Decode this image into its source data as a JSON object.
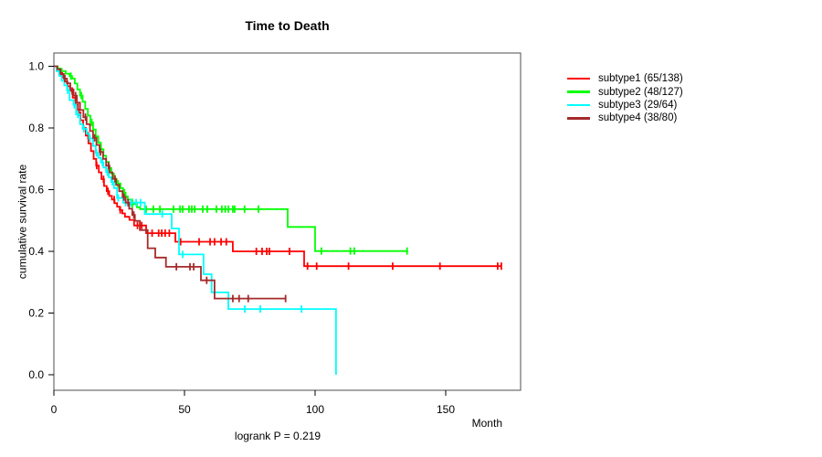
{
  "title": "Time to Death",
  "footer": {
    "annotation": "logrank P = 0.219"
  },
  "axes": {
    "x_label": "Month",
    "y_label": "cumulative survival rate"
  },
  "chart_data": {
    "type": "line",
    "style": "kaplan-meier-step",
    "title": "Time to Death",
    "xlabel": "Month",
    "ylabel": "cumulative survival rate",
    "annotation": "logrank P = 0.219",
    "xlim": [
      0,
      178
    ],
    "ylim": [
      0,
      1.0
    ],
    "xticks": [
      0,
      50,
      100,
      150
    ],
    "ytick_labels": [
      "0.0",
      "0.2",
      "0.4",
      "0.6",
      "0.8",
      "1.0"
    ],
    "grid": false,
    "legend_position": "right-outside",
    "series": [
      {
        "name": "subtype1",
        "label": "subtype1 (65/138)",
        "events": 65,
        "n": 138,
        "color": "#ff0000",
        "points": [
          [
            0,
            1
          ],
          [
            1.2,
            0.993
          ],
          [
            2.2,
            0.978
          ],
          [
            3.2,
            0.964
          ],
          [
            4.2,
            0.95
          ],
          [
            5.2,
            0.935
          ],
          [
            6.2,
            0.92
          ],
          [
            7.2,
            0.898
          ],
          [
            8.2,
            0.876
          ],
          [
            9.2,
            0.85
          ],
          [
            10.2,
            0.825
          ],
          [
            11.2,
            0.8
          ],
          [
            12.2,
            0.775
          ],
          [
            13.2,
            0.75
          ],
          [
            14.2,
            0.725
          ],
          [
            15.2,
            0.7
          ],
          [
            16.2,
            0.678
          ],
          [
            17.2,
            0.656
          ],
          [
            18.2,
            0.634
          ],
          [
            19.2,
            0.612
          ],
          [
            20.2,
            0.595
          ],
          [
            21.2,
            0.58
          ],
          [
            22.2,
            0.568
          ],
          [
            23.2,
            0.556
          ],
          [
            24.2,
            0.545
          ],
          [
            25.2,
            0.534
          ],
          [
            26.2,
            0.523
          ],
          [
            27.2,
            0.512
          ],
          [
            28.9,
            0.502
          ],
          [
            30.7,
            0.484
          ],
          [
            35.3,
            0.459
          ],
          [
            46.5,
            0.431
          ],
          [
            68.5,
            0.4
          ],
          [
            95.8,
            0.352
          ]
        ],
        "end_t": 171.5,
        "censors": [
          2.8,
          7,
          9.6,
          13.1,
          16.4,
          19,
          20.7,
          23.1,
          25.4,
          32,
          33.6,
          37.6,
          40.1,
          41.3,
          42.6,
          44.2,
          48.5,
          55.6,
          59.8,
          61.5,
          64,
          66,
          77.5,
          79.7,
          81.5,
          82.5,
          90.2,
          97.1,
          100.6,
          112.8,
          129.7,
          147.8,
          169.9,
          171.3
        ]
      },
      {
        "name": "subtype2",
        "label": "subtype2 (48/127)",
        "events": 48,
        "n": 127,
        "color": "#00ff00",
        "points": [
          [
            0,
            1
          ],
          [
            1.5,
            0.992
          ],
          [
            3,
            0.984
          ],
          [
            4.5,
            0.976
          ],
          [
            6,
            0.968
          ],
          [
            7,
            0.96
          ],
          [
            8,
            0.944
          ],
          [
            9,
            0.925
          ],
          [
            10,
            0.905
          ],
          [
            11,
            0.885
          ],
          [
            12,
            0.862
          ],
          [
            13,
            0.84
          ],
          [
            14,
            0.818
          ],
          [
            15,
            0.795
          ],
          [
            16,
            0.773
          ],
          [
            17,
            0.752
          ],
          [
            18,
            0.731
          ],
          [
            19,
            0.71
          ],
          [
            20,
            0.69
          ],
          [
            21,
            0.67
          ],
          [
            22,
            0.652
          ],
          [
            23,
            0.635
          ],
          [
            24,
            0.62
          ],
          [
            25.5,
            0.605
          ],
          [
            26.5,
            0.59
          ],
          [
            27.5,
            0.578
          ],
          [
            28.3,
            0.568
          ],
          [
            30,
            0.553
          ],
          [
            31.8,
            0.543
          ],
          [
            33,
            0.537
          ],
          [
            89.5,
            0.479
          ],
          [
            100,
            0.401
          ]
        ],
        "end_t": 135.6,
        "censors": [
          6.5,
          10.5,
          14.5,
          18,
          21,
          24.5,
          27,
          30,
          35.3,
          38.1,
          40.6,
          45.8,
          48.3,
          49.3,
          51.7,
          52.8,
          53.9,
          57,
          58.7,
          62.2,
          64.3,
          65.6,
          66.8,
          68.5,
          69.2,
          73,
          78.3,
          102.4,
          113.5,
          115,
          135.2
        ]
      },
      {
        "name": "subtype3",
        "label": "subtype3 (29/64)",
        "events": 29,
        "n": 64,
        "color": "#00ffff",
        "points": [
          [
            0,
            1
          ],
          [
            1,
            0.984
          ],
          [
            2,
            0.969
          ],
          [
            3,
            0.953
          ],
          [
            4,
            0.938
          ],
          [
            5,
            0.922
          ],
          [
            6,
            0.89
          ],
          [
            7.5,
            0.875
          ],
          [
            8.5,
            0.844
          ],
          [
            10,
            0.812
          ],
          [
            11,
            0.797
          ],
          [
            12.5,
            0.781
          ],
          [
            13.5,
            0.766
          ],
          [
            15,
            0.742
          ],
          [
            16,
            0.719
          ],
          [
            17,
            0.703
          ],
          [
            18,
            0.688
          ],
          [
            19,
            0.672
          ],
          [
            20,
            0.656
          ],
          [
            21,
            0.64
          ],
          [
            22,
            0.625
          ],
          [
            23,
            0.605
          ],
          [
            24.2,
            0.573
          ],
          [
            26.5,
            0.558
          ],
          [
            34.8,
            0.521
          ],
          [
            45.1,
            0.474
          ],
          [
            47.9,
            0.39
          ],
          [
            57.3,
            0.326
          ],
          [
            60.4,
            0.267
          ],
          [
            66.8,
            0.213
          ],
          [
            108,
            0
          ]
        ],
        "end_t": 108,
        "censors": [
          5.3,
          7.8,
          9.2,
          11.5,
          13.8,
          16.3,
          18.6,
          20.5,
          22.4,
          24.6,
          27.5,
          29.5,
          31.5,
          33.2,
          41.5,
          49.3,
          73.1,
          79,
          94.8
        ]
      },
      {
        "name": "subtype4",
        "label": "subtype4 (38/80)",
        "events": 38,
        "n": 80,
        "color": "#a52a2a",
        "points": [
          [
            0,
            1
          ],
          [
            1.3,
            0.99
          ],
          [
            2.5,
            0.975
          ],
          [
            3.8,
            0.96
          ],
          [
            5,
            0.945
          ],
          [
            6.3,
            0.925
          ],
          [
            7.5,
            0.905
          ],
          [
            8.8,
            0.882
          ],
          [
            10,
            0.858
          ],
          [
            11.3,
            0.835
          ],
          [
            12.5,
            0.812
          ],
          [
            13.8,
            0.79
          ],
          [
            15,
            0.768
          ],
          [
            16.3,
            0.745
          ],
          [
            17.5,
            0.722
          ],
          [
            18.8,
            0.7
          ],
          [
            20,
            0.678
          ],
          [
            21.3,
            0.656
          ],
          [
            22.5,
            0.635
          ],
          [
            23.8,
            0.615
          ],
          [
            25,
            0.595
          ],
          [
            26.3,
            0.576
          ],
          [
            27.5,
            0.558
          ],
          [
            28.8,
            0.538
          ],
          [
            30,
            0.518
          ],
          [
            31,
            0.499
          ],
          [
            32.9,
            0.469
          ],
          [
            35.9,
            0.41
          ],
          [
            38.8,
            0.38
          ],
          [
            42.9,
            0.35
          ],
          [
            56.3,
            0.306
          ],
          [
            61.5,
            0.247
          ]
        ],
        "end_t": 88.9,
        "censors": [
          4.2,
          8.3,
          12.1,
          15.6,
          17.8,
          20.9,
          23.4,
          26.8,
          28.4,
          30.6,
          46.9,
          52.1,
          53.5,
          58.5,
          68.5,
          70.9,
          74.4,
          88.7
        ]
      }
    ]
  }
}
